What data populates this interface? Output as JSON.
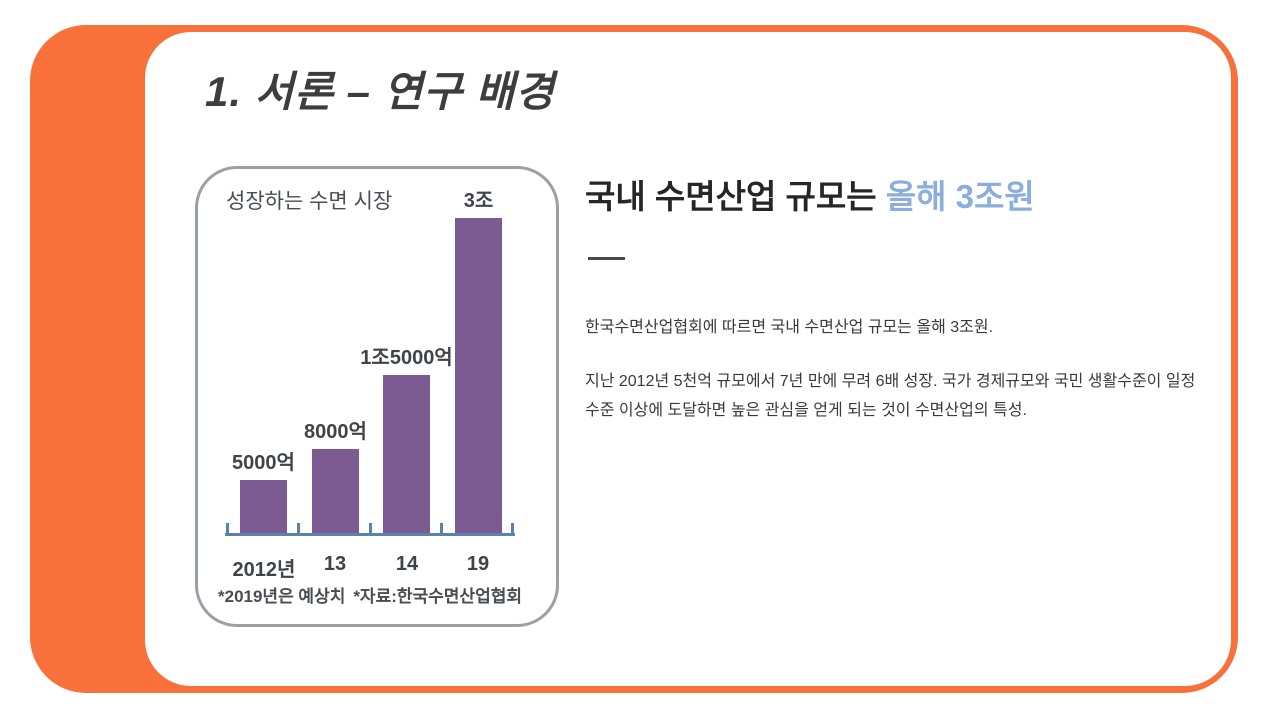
{
  "slide": {
    "title": "1. 서론 – 연구 배경",
    "accent_color": "#F8703A"
  },
  "chart": {
    "title": "성장하는 수면 시장",
    "footnote_left": "*2019년은 예상치",
    "footnote_right": "*자료:한국수면산업협회",
    "bar_color": "#7B5B92",
    "axis_color": "#5B82A8"
  },
  "chart_data": {
    "type": "bar",
    "title": "성장하는 수면 시장",
    "categories": [
      "2012년",
      "13",
      "14",
      "19"
    ],
    "values": [
      0.5,
      0.8,
      1.5,
      3
    ],
    "value_labels": [
      "5000억",
      "8000억",
      "1조5000억",
      "3조"
    ],
    "unit": "조원 (trillion KRW)",
    "ylim": [
      0,
      3
    ],
    "grid": false,
    "legend": false,
    "notes": [
      "*2019년은 예상치",
      "*자료:한국수면산업협회"
    ]
  },
  "content": {
    "heading_plain": "국내 수면산업 규모는 ",
    "heading_highlight": "올해 3조원",
    "highlight_color": "#8BAEDC",
    "paragraph1": "한국수면산업협회에 따르면 국내 수면산업 규모는 올해 3조원.",
    "paragraph2": "지난 2012년 5천억 규모에서 7년 만에 무려 6배 성장. 국가 경제규모와 국민 생활수준이 일정 수준 이상에 도달하면 높은 관심을 얻게 되는 것이 수면산업의 특성."
  }
}
